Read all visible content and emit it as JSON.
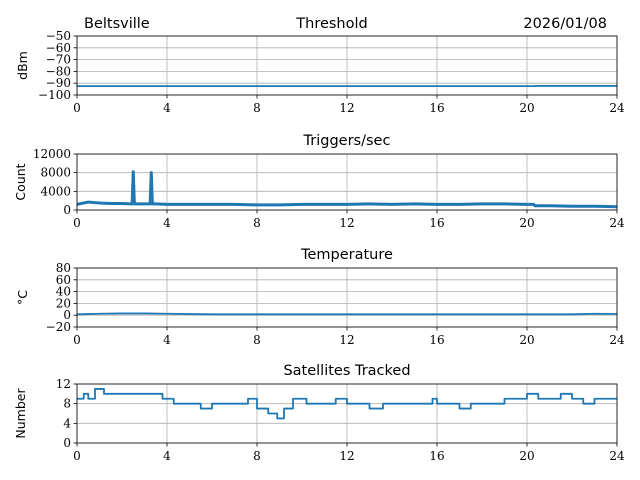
{
  "header": {
    "location": "Beltsville",
    "title": "Threshold",
    "date": "2026/01/08"
  },
  "colors": {
    "series": "#1f77b4",
    "grid": "#b0b0b0",
    "axes": "#000000"
  },
  "chart_data": [
    {
      "type": "line",
      "title": "Threshold",
      "xlabel": "",
      "ylabel": "dBm",
      "xlim": [
        0,
        24
      ],
      "ylim": [
        -100,
        -50
      ],
      "xticks": [
        "0",
        "4",
        "8",
        "12",
        "16",
        "20",
        "24"
      ],
      "yticks": [
        "−100",
        "−90",
        "−80",
        "−70",
        "−60",
        "−50"
      ],
      "grid": true,
      "series": [
        {
          "x": [
            0,
            20.3
          ],
          "y": [
            -92.5,
            -92.5
          ]
        },
        {
          "x": [
            20.3,
            24
          ],
          "y": [
            -92.3,
            -92.3
          ]
        }
      ]
    },
    {
      "type": "line",
      "title": "Triggers/sec",
      "xlabel": "",
      "ylabel": "Count",
      "xlim": [
        0,
        24
      ],
      "ylim": [
        0,
        12000
      ],
      "xticks": [
        "0",
        "4",
        "8",
        "12",
        "16",
        "20",
        "24"
      ],
      "yticks": [
        "0",
        "4000",
        "8000",
        "12000"
      ],
      "grid": true,
      "series": [
        {
          "x": [
            0,
            0.5,
            1,
            1.5,
            2,
            2.45,
            2.5,
            2.55,
            2.8,
            3.25,
            3.3,
            3.35,
            3.5,
            4,
            5,
            6,
            7,
            8,
            9,
            10,
            11,
            12,
            13,
            14,
            15,
            16,
            17,
            18,
            19,
            20,
            20.3,
            20.35,
            21,
            22,
            23,
            24
          ],
          "y": [
            1200,
            1700,
            1500,
            1400,
            1400,
            1300,
            8200,
            1300,
            1300,
            1300,
            8000,
            1300,
            1300,
            1200,
            1200,
            1200,
            1200,
            1100,
            1100,
            1200,
            1200,
            1200,
            1300,
            1200,
            1300,
            1200,
            1200,
            1300,
            1300,
            1200,
            1200,
            900,
            900,
            800,
            800,
            700
          ]
        }
      ]
    },
    {
      "type": "line",
      "title": "Temperature",
      "xlabel": "",
      "ylabel": "°C",
      "xlim": [
        0,
        24
      ],
      "ylim": [
        -20,
        80
      ],
      "xticks": [
        "0",
        "4",
        "8",
        "12",
        "16",
        "20",
        "24"
      ],
      "yticks": [
        "−20",
        "0",
        "20",
        "40",
        "60",
        "80"
      ],
      "grid": true,
      "series": [
        {
          "x": [
            0,
            1,
            2,
            3,
            4,
            6,
            8,
            10,
            12,
            14,
            16,
            18,
            20,
            22,
            23,
            24
          ],
          "y": [
            1.5,
            2.5,
            3,
            3,
            2.5,
            1.5,
            1.5,
            1.5,
            1.5,
            1.5,
            1.5,
            1.5,
            1.5,
            1.5,
            2.5,
            2
          ]
        }
      ]
    },
    {
      "type": "line",
      "title": "Satellites Tracked",
      "xlabel": "",
      "ylabel": "Number",
      "xlim": [
        0,
        24
      ],
      "ylim": [
        0,
        12
      ],
      "xticks": [
        "0",
        "4",
        "8",
        "12",
        "16",
        "20",
        "24"
      ],
      "yticks": [
        "0",
        "4",
        "8",
        "12"
      ],
      "grid": true,
      "series": [
        {
          "x": [
            0,
            0.3,
            0.5,
            0.8,
            1.2,
            2,
            2.6,
            3.2,
            3.8,
            4.3,
            5,
            5.5,
            6,
            7,
            7.6,
            8,
            8.5,
            8.9,
            9.2,
            9.6,
            10.2,
            11,
            11.5,
            12,
            12.6,
            13,
            13.6,
            14.3,
            15,
            15.8,
            16,
            16.5,
            17,
            17.5,
            18.3,
            19,
            19.6,
            20,
            20.5,
            21,
            21.5,
            22,
            22.5,
            23,
            23.6,
            24
          ],
          "y": [
            9,
            10,
            9,
            11,
            10,
            10,
            10,
            10,
            9,
            8,
            8,
            7,
            8,
            8,
            9,
            7,
            6,
            5,
            7,
            9,
            8,
            8,
            9,
            8,
            8,
            7,
            8,
            8,
            8,
            9,
            8,
            8,
            7,
            8,
            8,
            9,
            9,
            10,
            9,
            9,
            10,
            9,
            8,
            9,
            9,
            9
          ]
        }
      ]
    }
  ]
}
